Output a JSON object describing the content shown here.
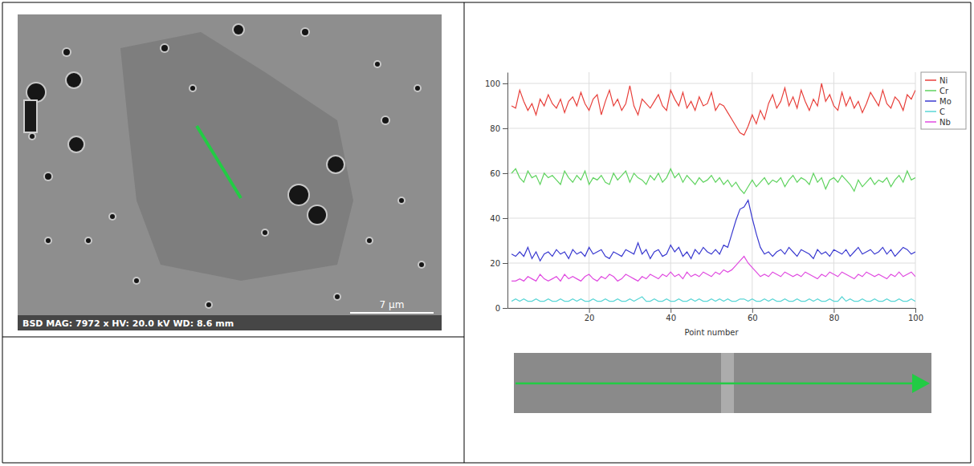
{
  "chart_data": {
    "type": "line",
    "x_label": "Point number",
    "x": [
      1,
      2,
      3,
      4,
      5,
      6,
      7,
      8,
      9,
      10,
      11,
      12,
      13,
      14,
      15,
      16,
      17,
      18,
      19,
      20,
      21,
      22,
      23,
      24,
      25,
      26,
      27,
      28,
      29,
      30,
      31,
      32,
      33,
      34,
      35,
      36,
      37,
      38,
      39,
      40,
      41,
      42,
      43,
      44,
      45,
      46,
      47,
      48,
      49,
      50,
      51,
      52,
      53,
      54,
      55,
      56,
      57,
      58,
      59,
      60,
      61,
      62,
      63,
      64,
      65,
      66,
      67,
      68,
      69,
      70,
      71,
      72,
      73,
      74,
      75,
      76,
      77,
      78,
      79,
      80,
      81,
      82,
      83,
      84,
      85,
      86,
      87,
      88,
      89,
      90,
      91,
      92,
      93,
      94,
      95,
      96,
      97,
      98,
      99,
      100
    ],
    "series": [
      {
        "name": "Ni",
        "color": "#e8413c",
        "values": [
          90,
          89,
          97,
          92,
          88,
          91,
          86,
          93,
          90,
          95,
          91,
          89,
          93,
          87,
          92,
          94,
          90,
          96,
          91,
          88,
          93,
          95,
          86,
          92,
          97,
          90,
          93,
          88,
          91,
          99,
          90,
          86,
          93,
          91,
          89,
          92,
          95,
          90,
          88,
          97,
          93,
          90,
          96,
          89,
          92,
          88,
          94,
          90,
          91,
          96,
          88,
          91,
          90,
          87,
          84,
          81,
          78,
          77,
          81,
          86,
          82,
          88,
          84,
          91,
          95,
          89,
          92,
          98,
          90,
          94,
          89,
          97,
          92,
          88,
          93,
          90,
          100,
          92,
          95,
          90,
          88,
          96,
          90,
          94,
          89,
          92,
          87,
          91,
          96,
          93,
          90,
          97,
          91,
          89,
          94,
          92,
          88,
          95,
          93,
          97
        ]
      },
      {
        "name": "Cr",
        "color": "#5fd35f",
        "values": [
          60,
          62,
          58,
          56,
          61,
          58,
          59,
          55,
          60,
          58,
          59,
          57,
          55,
          61,
          58,
          56,
          59,
          57,
          61,
          55,
          58,
          57,
          59,
          56,
          55,
          60,
          57,
          59,
          61,
          56,
          60,
          58,
          57,
          55,
          59,
          57,
          60,
          56,
          58,
          62,
          58,
          60,
          56,
          59,
          57,
          55,
          58,
          56,
          57,
          59,
          56,
          58,
          55,
          57,
          54,
          56,
          53,
          51,
          54,
          57,
          54,
          56,
          58,
          55,
          57,
          56,
          58,
          54,
          57,
          59,
          56,
          58,
          57,
          55,
          60,
          56,
          58,
          53,
          57,
          58,
          56,
          59,
          57,
          55,
          52,
          57,
          54,
          56,
          58,
          55,
          57,
          56,
          58,
          54,
          57,
          59,
          56,
          61,
          57,
          58
        ]
      },
      {
        "name": "Mo",
        "color": "#3a3ad0",
        "values": [
          24,
          23,
          25,
          23,
          27,
          22,
          25,
          21,
          24,
          25,
          23,
          26,
          24,
          25,
          22,
          26,
          24,
          25,
          23,
          27,
          24,
          25,
          26,
          23,
          22,
          25,
          24,
          23,
          26,
          25,
          24,
          29,
          24,
          26,
          22,
          25,
          26,
          23,
          24,
          28,
          25,
          27,
          23,
          25,
          22,
          26,
          24,
          27,
          25,
          24,
          26,
          24,
          28,
          27,
          33,
          39,
          44,
          45,
          48,
          40,
          33,
          27,
          24,
          25,
          23,
          25,
          26,
          24,
          27,
          25,
          23,
          26,
          25,
          24,
          22,
          26,
          24,
          25,
          23,
          26,
          25,
          24,
          26,
          23,
          25,
          27,
          24,
          25,
          26,
          24,
          25,
          27,
          24,
          26,
          23,
          25,
          27,
          26,
          24,
          25
        ]
      },
      {
        "name": "C",
        "color": "#5ad6d6",
        "values": [
          3,
          4,
          3,
          4,
          3,
          3,
          4,
          3,
          3,
          4,
          3,
          3,
          4,
          3,
          3,
          4,
          3,
          4,
          3,
          3,
          4,
          3,
          3,
          4,
          3,
          3,
          4,
          3,
          3,
          4,
          3,
          4,
          5,
          3,
          3,
          4,
          3,
          3,
          4,
          3,
          3,
          4,
          3,
          3,
          4,
          3,
          4,
          3,
          3,
          4,
          3,
          4,
          3,
          4,
          3,
          3,
          4,
          4,
          3,
          4,
          3,
          3,
          4,
          3,
          4,
          3,
          3,
          4,
          3,
          3,
          4,
          3,
          3,
          4,
          3,
          4,
          3,
          3,
          4,
          3,
          3,
          5,
          3,
          4,
          3,
          3,
          4,
          3,
          3,
          4,
          3,
          3,
          4,
          3,
          3,
          4,
          3,
          3,
          4,
          3
        ]
      },
      {
        "name": "Nb",
        "color": "#e04be0",
        "values": [
          12,
          12,
          13,
          12,
          14,
          13,
          12,
          15,
          13,
          12,
          13,
          14,
          12,
          15,
          13,
          14,
          13,
          12,
          14,
          15,
          13,
          12,
          14,
          13,
          15,
          14,
          12,
          13,
          15,
          14,
          13,
          12,
          14,
          13,
          15,
          14,
          13,
          15,
          14,
          16,
          14,
          15,
          13,
          16,
          14,
          15,
          14,
          16,
          15,
          14,
          16,
          15,
          17,
          16,
          17,
          19,
          21,
          23,
          20,
          18,
          16,
          14,
          15,
          14,
          16,
          15,
          14,
          16,
          15,
          14,
          15,
          14,
          16,
          15,
          14,
          13,
          15,
          14,
          16,
          15,
          14,
          16,
          15,
          14,
          13,
          15,
          14,
          16,
          15,
          14,
          15,
          14,
          13,
          15,
          14,
          16,
          14,
          15,
          16,
          14
        ]
      }
    ],
    "xlim": [
      0,
      100
    ],
    "xticks": [
      20,
      40,
      60,
      80,
      100
    ],
    "ylim": [
      0,
      105
    ],
    "yticks": [
      0,
      20,
      40,
      60,
      80,
      100
    ],
    "grid": true,
    "legend": "right"
  },
  "image": {
    "caption": "BSD MAG: 7972 x HV: 20.0 kV WD: 8.6 mm",
    "scale_bar": "7 µm"
  }
}
